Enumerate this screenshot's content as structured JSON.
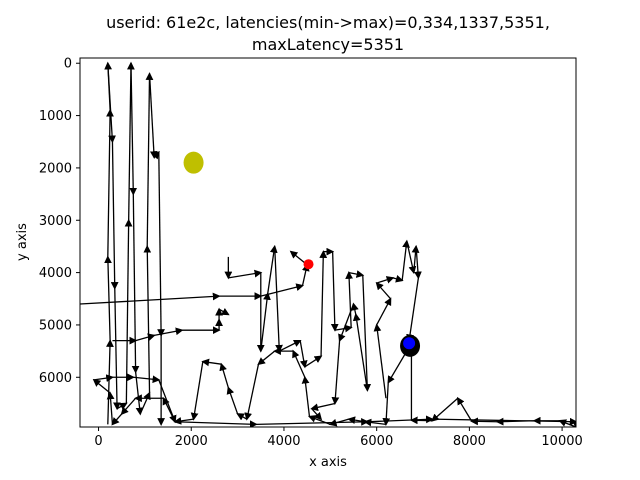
{
  "chart_data": {
    "type": "line",
    "title_lines": [
      "userid: 61e2c, latencies(min->max)=0,334,1337,5351,",
      "maxLatency=5351"
    ],
    "xlabel": "x axis",
    "ylabel": "y axis",
    "xlim": [
      -400,
      10300
    ],
    "ylim": [
      6950,
      -100
    ],
    "y_inverted": true,
    "x_ticks": [
      0,
      2000,
      4000,
      6000,
      8000,
      10000
    ],
    "x_tick_labels": [
      "0",
      "2000",
      "4000",
      "6000",
      "8000",
      "10000"
    ],
    "y_ticks": [
      0,
      1000,
      2000,
      3000,
      4000,
      5000,
      6000
    ],
    "y_tick_labels": [
      "0",
      "1000",
      "2000",
      "3000",
      "4000",
      "5000",
      "6000"
    ],
    "grid": false,
    "series": [
      {
        "style": "black line with arrowheads",
        "color": "#000000",
        "points": [
          [
            10300,
            6950
          ],
          [
            9950,
            6830
          ],
          [
            9400,
            6830
          ],
          [
            8600,
            6850
          ],
          [
            8050,
            6840
          ],
          [
            7750,
            6400
          ],
          [
            7200,
            6830
          ],
          [
            6750,
            6820
          ],
          [
            6750,
            5350
          ],
          [
            6250,
            6100
          ],
          [
            6200,
            6900
          ],
          [
            5750,
            6850
          ],
          [
            5400,
            6800
          ],
          [
            5000,
            6900
          ],
          [
            4550,
            6750
          ],
          [
            4450,
            6000
          ],
          [
            4200,
            5500
          ],
          [
            3800,
            5500
          ],
          [
            3450,
            5750
          ],
          [
            3200,
            6800
          ],
          [
            3000,
            6700
          ],
          [
            2800,
            6200
          ],
          [
            2650,
            5750
          ],
          [
            2250,
            5700
          ],
          [
            2050,
            6800
          ],
          [
            1650,
            6850
          ],
          [
            1400,
            6400
          ],
          [
            800,
            6400
          ],
          [
            500,
            6700
          ],
          [
            300,
            6900
          ],
          [
            250,
            6300
          ],
          [
            -100,
            6050
          ],
          [
            300,
            6000
          ],
          [
            750,
            6000
          ],
          [
            1300,
            6050
          ],
          [
            1650,
            6850
          ],
          [
            3400,
            6900
          ],
          [
            5800,
            6850
          ],
          [
            7200,
            6800
          ],
          [
            10300,
            6850
          ],
          [
            10300,
            6950
          ]
        ]
      },
      {
        "style": "black line with arrowheads",
        "color": "#000000",
        "points": [
          [
            -400,
            4600
          ],
          [
            2600,
            4450
          ],
          [
            3500,
            4450
          ],
          [
            4400,
            4250
          ],
          [
            4500,
            3850
          ],
          [
            4150,
            3600
          ]
        ]
      },
      {
        "style": "black line with arrowheads",
        "color": "#000000",
        "points": [
          [
            200,
            6900
          ],
          [
            250,
            5300
          ],
          [
            200,
            3700
          ],
          [
            250,
            900
          ],
          [
            200,
            0
          ],
          [
            300,
            1500
          ],
          [
            350,
            4300
          ],
          [
            400,
            6600
          ],
          [
            600,
            6500
          ],
          [
            650,
            3000
          ],
          [
            700,
            0
          ],
          [
            750,
            2500
          ],
          [
            800,
            5900
          ],
          [
            900,
            6700
          ],
          [
            1100,
            6300
          ],
          [
            1050,
            3500
          ],
          [
            1100,
            200
          ],
          [
            1200,
            1800
          ],
          [
            1300,
            1700
          ],
          [
            1350,
            5200
          ],
          [
            1350,
            6900
          ]
        ]
      },
      {
        "style": "black line with arrowheads",
        "color": "#000000",
        "points": [
          [
            300,
            5300
          ],
          [
            800,
            5300
          ],
          [
            1200,
            5200
          ],
          [
            1800,
            5100
          ],
          [
            2600,
            5100
          ],
          [
            2600,
            4900
          ],
          [
            2600,
            4700
          ],
          [
            2800,
            4800
          ]
        ]
      },
      {
        "style": "black line with arrowheads",
        "color": "#000000",
        "points": [
          [
            2800,
            3700
          ],
          [
            2800,
            4100
          ],
          [
            3500,
            4000
          ],
          [
            3500,
            5500
          ],
          [
            3650,
            4400
          ],
          [
            3800,
            3500
          ],
          [
            3900,
            5500
          ],
          [
            4350,
            5300
          ],
          [
            4450,
            5800
          ],
          [
            4800,
            5600
          ],
          [
            4850,
            3600
          ],
          [
            5050,
            3600
          ],
          [
            5100,
            5100
          ],
          [
            5450,
            5050
          ],
          [
            5400,
            4000
          ],
          [
            5700,
            4050
          ],
          [
            5800,
            6250
          ],
          [
            5550,
            4800
          ],
          [
            5500,
            4600
          ],
          [
            5200,
            5300
          ],
          [
            5100,
            6500
          ],
          [
            4600,
            6600
          ],
          [
            4800,
            6800
          ]
        ]
      },
      {
        "style": "black line with arrowheads",
        "color": "#000000",
        "points": [
          [
            6200,
            6400
          ],
          [
            6000,
            5000
          ],
          [
            6300,
            4500
          ],
          [
            6000,
            4200
          ],
          [
            6350,
            4100
          ],
          [
            6550,
            4150
          ],
          [
            6650,
            3400
          ],
          [
            6800,
            4000
          ],
          [
            6850,
            3500
          ],
          [
            6900,
            4100
          ],
          [
            6700,
            5300
          ]
        ]
      }
    ],
    "markers": [
      {
        "name": "",
        "x": 2050,
        "y": 1900,
        "color": "#bfbf00",
        "shape": "large circle"
      },
      {
        "name": "",
        "x": 4530,
        "y": 3840,
        "color": "#ff0000",
        "shape": "small circle"
      },
      {
        "name": "",
        "x": 6720,
        "y": 5400,
        "color": "#000000",
        "shape": "large circle"
      },
      {
        "name": "",
        "x": 6700,
        "y": 5350,
        "color": "#0000ff",
        "shape": "medium circle"
      }
    ]
  }
}
